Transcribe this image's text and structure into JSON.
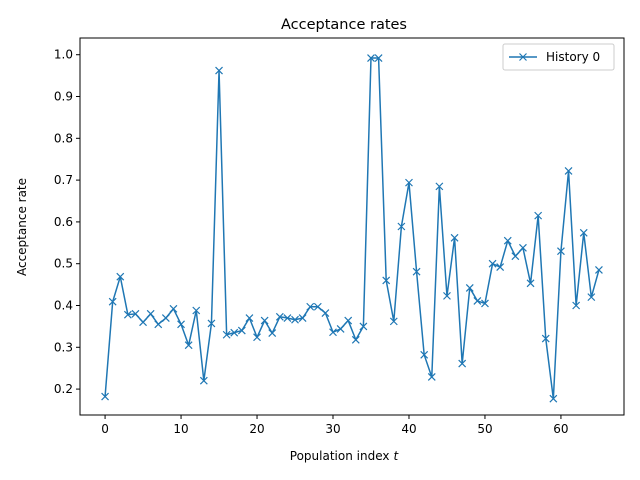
{
  "chart_data": {
    "type": "line",
    "title": "Acceptance rates",
    "xlabel": "Population index",
    "xlabel_var": "t",
    "ylabel": "Acceptance rate",
    "xlim": [
      -3.3,
      68.3
    ],
    "ylim": [
      0.138,
      1.04
    ],
    "xticks": [
      0,
      10,
      20,
      30,
      40,
      50,
      60
    ],
    "yticks": [
      0.2,
      0.3,
      0.4,
      0.5,
      0.6,
      0.7,
      0.8,
      0.9,
      1.0
    ],
    "ytick_labels": [
      "0.2",
      "0.3",
      "0.4",
      "0.5",
      "0.6",
      "0.7",
      "0.8",
      "0.9",
      "1.0"
    ],
    "grid": false,
    "legend_position": "top-right",
    "marker": "x",
    "series": [
      {
        "name": "History 0",
        "color": "#1f77b4",
        "x": [
          0,
          1,
          2,
          3,
          4,
          5,
          6,
          7,
          8,
          9,
          10,
          11,
          12,
          13,
          14,
          15,
          16,
          17,
          18,
          19,
          20,
          21,
          22,
          23,
          24,
          25,
          26,
          27,
          28,
          29,
          30,
          31,
          32,
          33,
          34,
          35,
          36,
          37,
          38,
          39,
          40,
          41,
          42,
          43,
          44,
          45,
          46,
          47,
          48,
          49,
          50,
          51,
          52,
          53,
          54,
          55,
          56,
          57,
          58,
          59,
          60,
          61,
          62,
          63,
          64,
          65
        ],
        "values": [
          0.182,
          0.409,
          0.469,
          0.378,
          0.38,
          0.36,
          0.38,
          0.355,
          0.37,
          0.392,
          0.355,
          0.305,
          0.388,
          0.22,
          0.357,
          0.962,
          0.33,
          0.335,
          0.34,
          0.37,
          0.324,
          0.364,
          0.334,
          0.373,
          0.37,
          0.366,
          0.37,
          0.397,
          0.397,
          0.382,
          0.336,
          0.344,
          0.364,
          0.318,
          0.35,
          0.992,
          0.992,
          0.46,
          0.362,
          0.589,
          0.694,
          0.481,
          0.282,
          0.229,
          0.685,
          0.423,
          0.562,
          0.261,
          0.442,
          0.411,
          0.405,
          0.5,
          0.492,
          0.555,
          0.518,
          0.538,
          0.453,
          0.615,
          0.321,
          0.177,
          0.53,
          0.722,
          0.4,
          0.574,
          0.42,
          0.485
        ]
      }
    ]
  }
}
